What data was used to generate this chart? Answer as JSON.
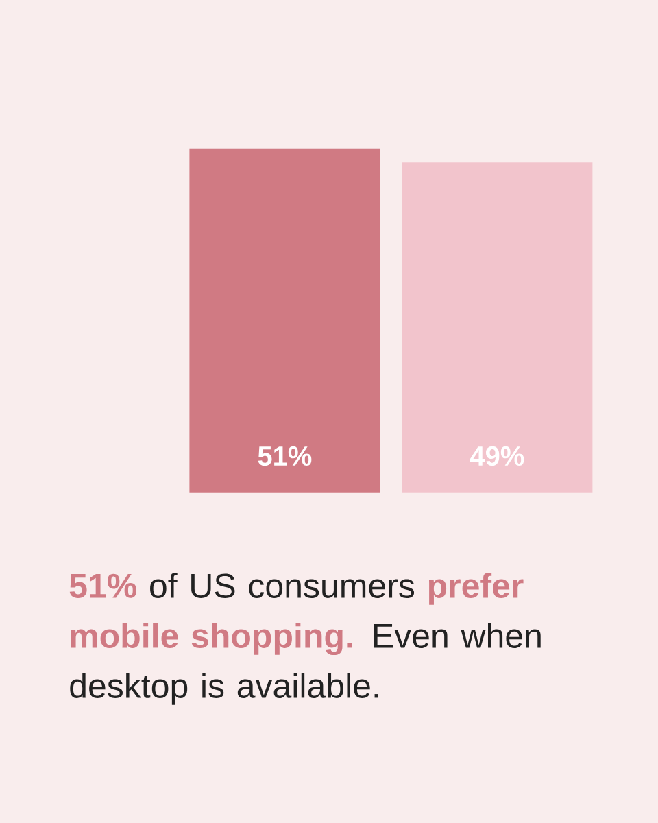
{
  "chart_data": {
    "type": "bar",
    "categories": [
      null,
      null
    ],
    "values": [
      51,
      49
    ],
    "colors": [
      "#d07a83",
      "#f2c4cc"
    ],
    "value_labels": [
      "51%",
      "49%"
    ],
    "annotations": [
      "**51%** of US consumers **prefer mobile shopping.** Even when desktop is available."
    ]
  }
}
